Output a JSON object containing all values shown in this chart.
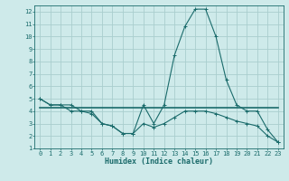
{
  "xlabel": "Humidex (Indice chaleur)",
  "xlim": [
    -0.5,
    23.5
  ],
  "ylim": [
    1,
    12.5
  ],
  "yticks": [
    1,
    2,
    3,
    4,
    5,
    6,
    7,
    8,
    9,
    10,
    11,
    12
  ],
  "xticks": [
    0,
    1,
    2,
    3,
    4,
    5,
    6,
    7,
    8,
    9,
    10,
    11,
    12,
    13,
    14,
    15,
    16,
    17,
    18,
    19,
    20,
    21,
    22,
    23
  ],
  "bg_color": "#ceeaea",
  "grid_color": "#aacece",
  "line_color": "#1a6b6b",
  "line1_x": [
    0,
    1,
    2,
    3,
    4,
    5,
    6,
    7,
    8,
    9,
    10,
    11,
    12,
    13,
    14,
    15,
    16,
    17,
    18,
    19,
    20,
    21,
    22,
    23
  ],
  "line1_y": [
    5.0,
    4.5,
    4.5,
    4.5,
    4.0,
    4.0,
    3.0,
    2.8,
    2.2,
    2.2,
    4.5,
    3.0,
    4.5,
    8.5,
    10.8,
    12.2,
    12.2,
    10.0,
    6.5,
    4.5,
    4.0,
    4.0,
    2.5,
    1.5
  ],
  "line2_x": [
    0,
    23
  ],
  "line2_y": [
    4.3,
    4.3
  ],
  "line3_x": [
    0,
    1,
    2,
    3,
    4,
    5,
    6,
    7,
    8,
    9,
    10,
    11,
    12,
    13,
    14,
    15,
    16,
    17,
    18,
    19,
    20,
    21,
    22,
    23
  ],
  "line3_y": [
    5.0,
    4.5,
    4.5,
    4.0,
    4.0,
    3.8,
    3.0,
    2.8,
    2.2,
    2.2,
    3.0,
    2.7,
    3.0,
    3.5,
    4.0,
    4.0,
    4.0,
    3.8,
    3.5,
    3.2,
    3.0,
    2.8,
    2.0,
    1.5
  ],
  "xlabel_fontsize": 6.0,
  "tick_fontsize": 5.0
}
